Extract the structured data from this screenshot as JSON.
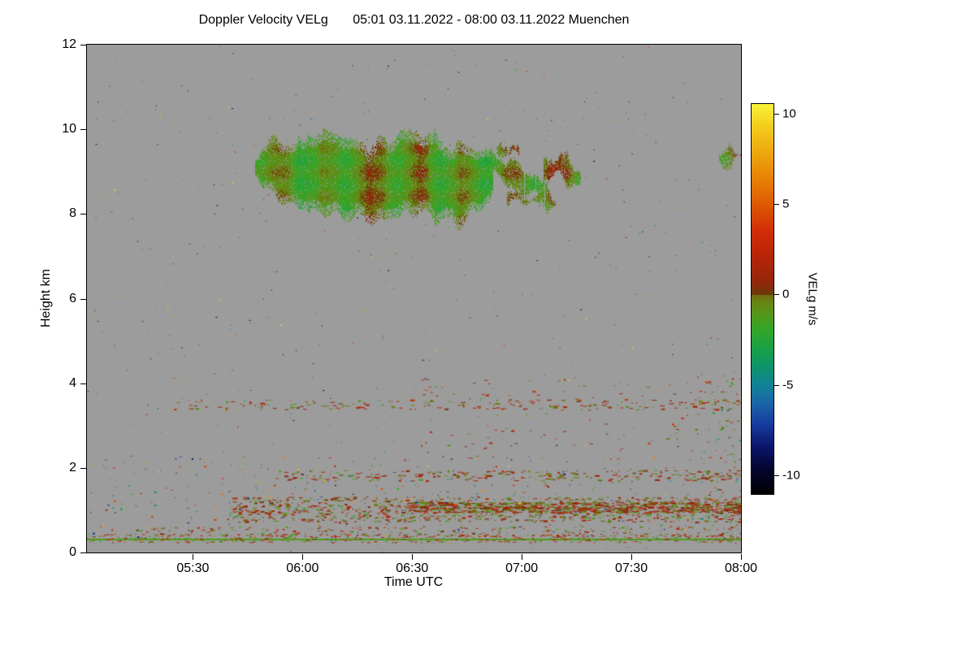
{
  "chart_data": {
    "type": "heatmap",
    "title": "Doppler Velocity VELg",
    "subtitle": "05:01 03.11.2022 - 08:00 03.11.2022 Muenchen",
    "xlabel": "Time UTC",
    "ylabel": "Height km",
    "x_axis": {
      "start_minute": 301,
      "end_minute": 480,
      "start_label": "05:01",
      "end_label": "08:00",
      "ticks": [
        {
          "minute": 330,
          "label": "05:30"
        },
        {
          "minute": 360,
          "label": "06:00"
        },
        {
          "minute": 390,
          "label": "06:30"
        },
        {
          "minute": 420,
          "label": "07:00"
        },
        {
          "minute": 450,
          "label": "07:30"
        },
        {
          "minute": 480,
          "label": "08:00"
        }
      ]
    },
    "y_axis": {
      "min_km": 0,
      "max_km": 12,
      "ticks": [
        0,
        2,
        4,
        6,
        8,
        10,
        12
      ]
    },
    "colorbar": {
      "label": "VELg m/s",
      "vmin": -11.05,
      "vmax": 10.55,
      "ticks": [
        10,
        5,
        0,
        -5,
        -10
      ],
      "stops": [
        {
          "v": -11.05,
          "c": "#000003"
        },
        {
          "v": -9.8,
          "c": "#04052a"
        },
        {
          "v": -8.5,
          "c": "#0a1468"
        },
        {
          "v": -7.2,
          "c": "#173c9e"
        },
        {
          "v": -6.0,
          "c": "#1a66a8"
        },
        {
          "v": -5.0,
          "c": "#128395"
        },
        {
          "v": -4.0,
          "c": "#0f946b"
        },
        {
          "v": -3.0,
          "c": "#1aa046"
        },
        {
          "v": -2.0,
          "c": "#33a62a"
        },
        {
          "v": -1.2,
          "c": "#4f9a1d"
        },
        {
          "v": -0.5,
          "c": "#678713"
        },
        {
          "v": -0.05,
          "c": "#716e0e"
        },
        {
          "v": 0.0,
          "c": "#6a3a0b"
        },
        {
          "v": 0.7,
          "c": "#93270a"
        },
        {
          "v": 2.0,
          "c": "#b52408"
        },
        {
          "v": 3.5,
          "c": "#d12d06"
        },
        {
          "v": 5.0,
          "c": "#dd5a04"
        },
        {
          "v": 6.5,
          "c": "#e78406"
        },
        {
          "v": 8.0,
          "c": "#eeab10"
        },
        {
          "v": 9.3,
          "c": "#f4cb1c"
        },
        {
          "v": 10.55,
          "c": "#faf23a"
        }
      ]
    },
    "no_signal_color": "#9c9c9c",
    "features": {
      "cloud_layer": {
        "description": "cirrus cloud band ~7.8-10.0 km, ~05:48-07:15 UTC, Doppler velocities mostly -2.5 to +0.5 m/s (olive-green with red-brown streaks)",
        "segments": [
          {
            "pts": [
              [
                347,
                8.95,
                9.3
              ],
              [
                350,
                8.6,
                9.55
              ],
              [
                354,
                8.35,
                9.7
              ],
              [
                358,
                8.2,
                9.8
              ],
              [
                362,
                8.1,
                9.92
              ],
              [
                366,
                8.02,
                9.98
              ],
              [
                370,
                7.95,
                9.9
              ],
              [
                374,
                7.88,
                9.78
              ],
              [
                378,
                7.85,
                9.62
              ],
              [
                382,
                7.82,
                9.66
              ],
              [
                386,
                7.9,
                9.74
              ],
              [
                390,
                8.0,
                9.86
              ],
              [
                394,
                7.95,
                9.8
              ],
              [
                398,
                7.88,
                9.68
              ],
              [
                402,
                7.9,
                9.58
              ],
              [
                406,
                8.0,
                9.52
              ],
              [
                409,
                8.15,
                9.45
              ],
              [
                412,
                8.4,
                9.3
              ]
            ],
            "v": -0.9,
            "holes": 0.05,
            "gap": 0.01
          },
          {
            "pts": [
              [
                411,
                9.0,
                9.5
              ],
              [
                416,
                8.75,
                9.3
              ],
              [
                421,
                8.5,
                9.05
              ],
              [
                426,
                8.3,
                8.75
              ],
              [
                429,
                8.25,
                8.5
              ]
            ],
            "v": -0.7,
            "holes": 0.15,
            "gap": 0.04
          },
          {
            "pts": [
              [
                426,
                8.85,
                9.3
              ],
              [
                431,
                8.8,
                9.32
              ],
              [
                436,
                8.78,
                9.05
              ]
            ],
            "v": -0.5,
            "holes": 0.15,
            "gap": 0.04
          },
          {
            "pts": [
              [
                413,
                9.42,
                9.66
              ],
              [
                419,
                9.38,
                9.58
              ]
            ],
            "v": -0.5,
            "holes": 0.3,
            "gap": 0.08
          },
          {
            "pts": [
              [
                416,
                8.25,
                8.52
              ],
              [
                421,
                8.28,
                8.55
              ],
              [
                425,
                8.15,
                8.4
              ]
            ],
            "v": -0.6,
            "holes": 0.3,
            "gap": 0.08
          },
          {
            "pts": [
              [
                474,
                9.2,
                9.55
              ],
              [
                477,
                9.15,
                9.5
              ],
              [
                480,
                9.22,
                9.48
              ]
            ],
            "v": -0.5,
            "holes": 0.25,
            "gap": 0.06
          }
        ]
      },
      "ground_clutter": {
        "height_km": 0.33,
        "velocity": -1.3,
        "speckles": {
          "count": 520,
          "h0": 0.24,
          "h1": 0.44,
          "v0": -2,
          "v1": 4,
          "wmax": 4
        }
      },
      "noise_bands": [
        {
          "t0": 340,
          "t1": 480,
          "h0": 0.72,
          "h1": 1.32,
          "count": 1100,
          "v0": -1.6,
          "v1": 2.2,
          "wmax": 5
        },
        {
          "t0": 388,
          "t1": 480,
          "h0": 0.95,
          "h1": 1.2,
          "count": 650,
          "v0": -1.2,
          "v1": 2.0,
          "wmax": 8
        },
        {
          "t0": 352,
          "t1": 480,
          "h0": 1.7,
          "h1": 1.95,
          "count": 270,
          "v0": -1.5,
          "v1": 2.4,
          "wmax": 6
        },
        {
          "t0": 324,
          "t1": 480,
          "h0": 3.38,
          "h1": 3.62,
          "count": 210,
          "v0": -1.2,
          "v1": 2.6,
          "wmax": 6
        },
        {
          "t0": 312,
          "t1": 480,
          "h0": 0.38,
          "h1": 0.62,
          "count": 260,
          "v0": -2.0,
          "v1": 3.0,
          "wmax": 4
        },
        {
          "t0": 301,
          "t1": 480,
          "h0": 0.3,
          "h1": 2.3,
          "count": 330,
          "v0": -9.0,
          "v1": 9.0,
          "wmax": 3
        },
        {
          "t0": 392,
          "t1": 480,
          "h0": 2.2,
          "h1": 4.15,
          "count": 130,
          "v0": -2.0,
          "v1": 4.0,
          "wmax": 4
        },
        {
          "t0": 468,
          "t1": 480,
          "h0": 0.3,
          "h1": 4.2,
          "count": 70,
          "v0": -4.0,
          "v1": 5.0,
          "wmax": 4
        }
      ],
      "background_speckles": {
        "count": 620,
        "vmin": -11.0,
        "vmax": 10.5
      }
    }
  }
}
